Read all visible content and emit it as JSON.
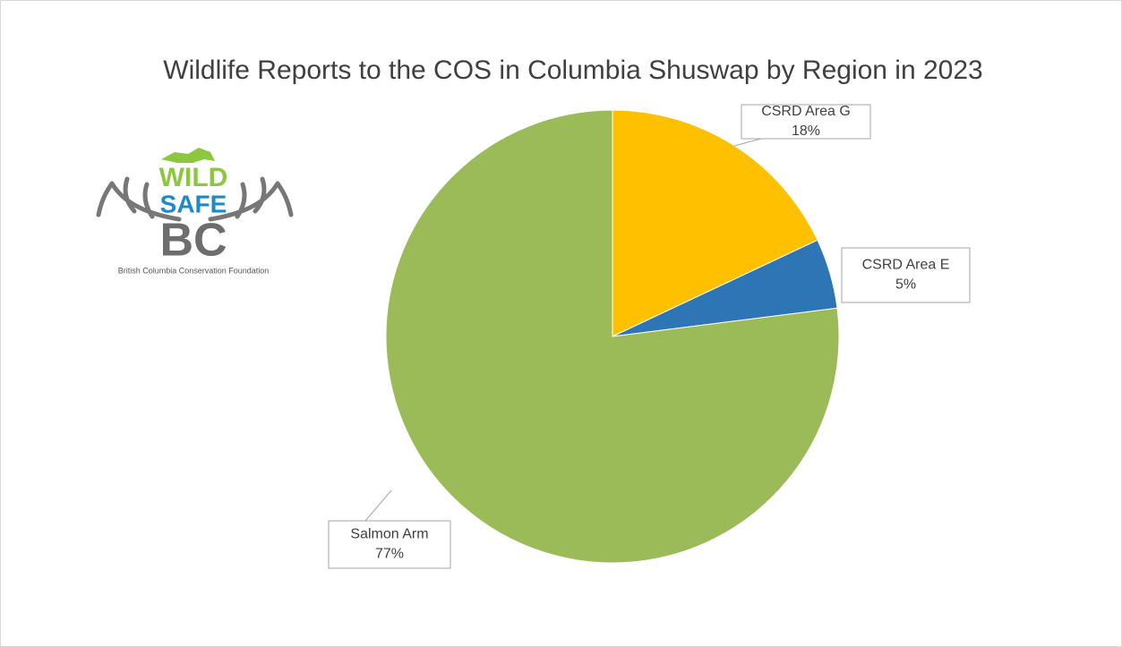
{
  "chart_data": {
    "type": "pie",
    "title": "Wildlife Reports to the COS in Columbia Shuswap by Region in 2023",
    "categories": [
      "CSRD Area G",
      "CSRD Area E",
      "Salmon Arm"
    ],
    "values": [
      18,
      5,
      77
    ],
    "value_labels": [
      "18%",
      "5%",
      "77%"
    ],
    "colors": [
      "#ffc000",
      "#2e75b6",
      "#9bbb59"
    ],
    "logo": {
      "word1": "WILD",
      "word2": "SAFE",
      "word3": "BC",
      "caption": "British Columbia Conservation Foundation"
    }
  }
}
